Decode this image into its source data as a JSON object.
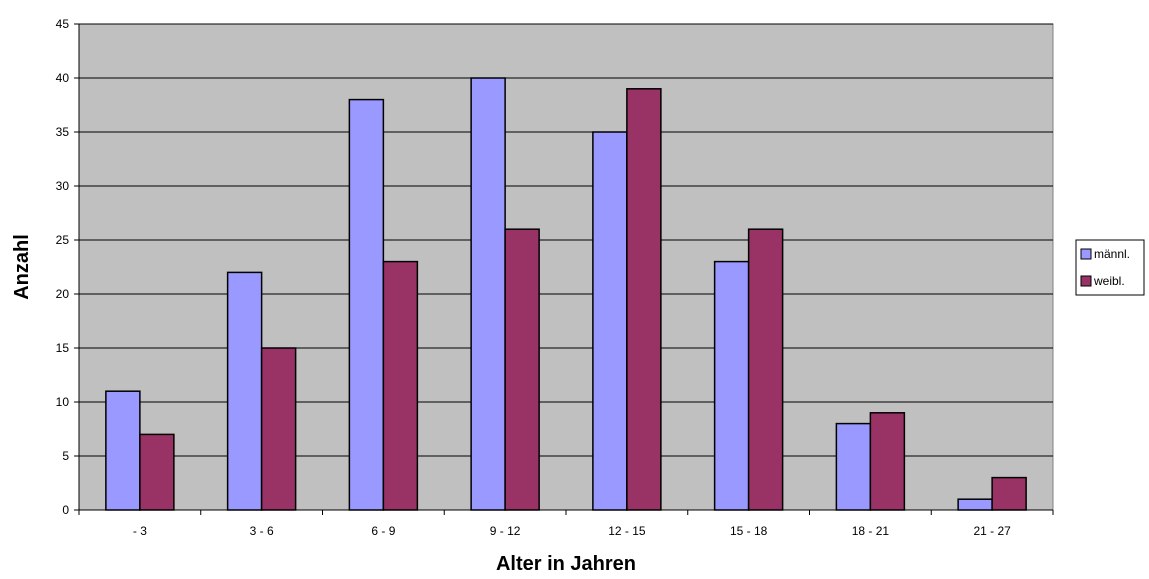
{
  "chart_data": {
    "type": "bar",
    "title": "",
    "xlabel": "Alter in Jahren",
    "ylabel": "Anzahl",
    "categories": [
      "- 3",
      "3 - 6",
      "6 - 9",
      "9 - 12",
      "12 - 15",
      "15 - 18",
      "18 - 21",
      "21 - 27"
    ],
    "series": [
      {
        "name": "männl.",
        "values": [
          11,
          22,
          38,
          40,
          35,
          23,
          8,
          1
        ],
        "color": "#9999ff"
      },
      {
        "name": "weibl.",
        "values": [
          7,
          15,
          23,
          26,
          39,
          26,
          9,
          3
        ],
        "color": "#993366"
      }
    ],
    "ylim": [
      0,
      45
    ],
    "yticks": [
      0,
      5,
      10,
      15,
      20,
      25,
      30,
      35,
      40,
      45
    ],
    "grid": true,
    "plot_background": "#c0c0c0",
    "legend_position": "right"
  }
}
